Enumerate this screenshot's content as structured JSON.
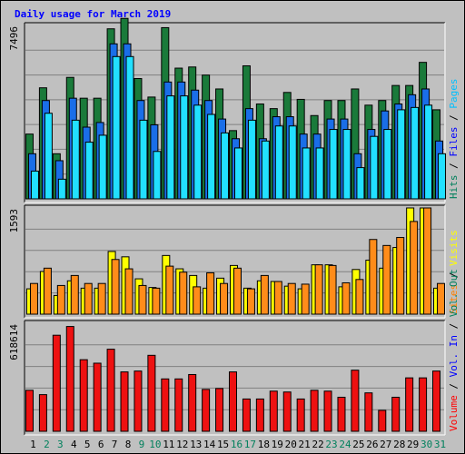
{
  "title": "Daily usage for March 2019",
  "chart_data": {
    "type": "bar",
    "title": "Daily usage for March 2019",
    "categories": [
      "1",
      "2",
      "3",
      "4",
      "5",
      "6",
      "7",
      "8",
      "9",
      "10",
      "11",
      "12",
      "13",
      "14",
      "15",
      "16",
      "17",
      "18",
      "19",
      "20",
      "21",
      "22",
      "23",
      "24",
      "25",
      "26",
      "27",
      "28",
      "29",
      "30",
      "31"
    ],
    "weekend_days": [
      "2",
      "3",
      "9",
      "10",
      "16",
      "17",
      "23",
      "24",
      "30",
      "31"
    ],
    "panels": [
      {
        "id": "hits_pages_files",
        "ymax": 7496,
        "ymax_label": "7496",
        "legend": [
          {
            "label": "Hits",
            "color": "#00805c"
          },
          {
            "label": "Files",
            "color": "#0000ff"
          },
          {
            "label": "Pages",
            "color": "#00c0ff"
          }
        ],
        "legend_separator": " / ",
        "series": [
          {
            "name": "Hits",
            "color": "#1a7a3a",
            "values": [
              2800,
              4800,
              1950,
              5250,
              4350,
              4350,
              7350,
              7800,
              5200,
              4400,
              7400,
              5650,
              5700,
              5350,
              4750,
              2950,
              5750,
              4100,
              3900,
              4600,
              4300,
              3600,
              4250,
              4250,
              4750,
              4050,
              4250,
              4900,
              4900,
              5900,
              3850
            ]
          },
          {
            "name": "Files",
            "color": "#1a6ee8",
            "values": [
              1950,
              4250,
              1650,
              4350,
              3100,
              3300,
              6700,
              6700,
              4250,
              3200,
              5050,
              5050,
              4700,
              4250,
              3450,
              2600,
              3900,
              2600,
              3550,
              3550,
              2800,
              2800,
              3450,
              3450,
              1950,
              3000,
              3800,
              4100,
              4500,
              4750,
              2500
            ]
          },
          {
            "name": "Pages",
            "color": "#22e0ff",
            "values": [
              1200,
              3700,
              850,
              3400,
              2450,
              2750,
              6150,
              6150,
              3400,
              2050,
              4450,
              4450,
              4050,
              3650,
              2850,
              2200,
              3400,
              2500,
              3150,
              3150,
              2200,
              2200,
              3000,
              3000,
              1350,
              2700,
              3000,
              3850,
              3950,
              4050,
              1950
            ]
          }
        ]
      },
      {
        "id": "visits_sites",
        "ymax": 1593,
        "ymax_label": "1593",
        "legend": [
          {
            "label": "Sites",
            "color": "#ff8000"
          },
          {
            "label": "Visits",
            "color": "#ffff00"
          }
        ],
        "legend_separator": " / ",
        "series": [
          {
            "name": "Visits",
            "color": "#ffff00",
            "values": [
              380,
              640,
              280,
              500,
              390,
              390,
              940,
              860,
              530,
              400,
              880,
              680,
              580,
              390,
              540,
              730,
              390,
              500,
              490,
              420,
              380,
              740,
              740,
              410,
              670,
              810,
              690,
              1000,
              1593,
              1593,
              390
            ]
          },
          {
            "name": "Sites",
            "color": "#ff8c1a",
            "values": [
              460,
              690,
              430,
              580,
              460,
              460,
              820,
              680,
              430,
              390,
              720,
              630,
              410,
              620,
              460,
              690,
              380,
              580,
              490,
              460,
              450,
              740,
              730,
              470,
              520,
              1120,
              1030,
              1150,
              1390,
              1593,
              460
            ]
          }
        ]
      },
      {
        "id": "volume",
        "ymax": 618614,
        "ymax_label": "618614",
        "legend": [
          {
            "label": "Volume",
            "color": "#ff0000"
          },
          {
            "label": "Vol. In",
            "color": "#0000ff"
          },
          {
            "label": "Vol. Out",
            "color": "#00805c"
          }
        ],
        "legend_separator": " / ",
        "series": [
          {
            "name": "Volume",
            "color": "#ee1111",
            "values": [
              235000,
              210000,
              550000,
              600000,
              410000,
              390000,
              470000,
              340000,
              345000,
              435000,
              300000,
              300000,
              325000,
              240000,
              245000,
              340000,
              185000,
              185000,
              230000,
              225000,
              185000,
              235000,
              230000,
              195000,
              350000,
              220000,
              120000,
              195000,
              306000,
              306000,
              345000
            ]
          },
          {
            "name": "Vol. In",
            "color": "#0000ff",
            "values": [
              0,
              0,
              0,
              0,
              0,
              0,
              0,
              0,
              0,
              0,
              0,
              0,
              0,
              0,
              0,
              0,
              0,
              0,
              0,
              0,
              0,
              0,
              0,
              0,
              0,
              0,
              0,
              0,
              0,
              0,
              0
            ]
          },
          {
            "name": "Vol. Out",
            "color": "#00805c",
            "values": [
              0,
              0,
              0,
              0,
              0,
              0,
              0,
              0,
              0,
              0,
              0,
              0,
              0,
              0,
              0,
              0,
              0,
              0,
              0,
              0,
              0,
              0,
              0,
              0,
              0,
              0,
              0,
              0,
              0,
              0,
              0
            ]
          }
        ]
      }
    ]
  }
}
